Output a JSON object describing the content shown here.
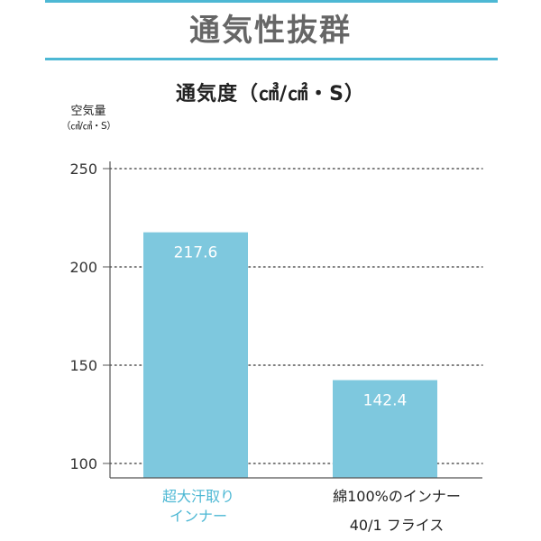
{
  "heading": "通気性抜群",
  "colors": {
    "accent": "#4db8d4",
    "bar": "#7ec8de",
    "axis": "#555555",
    "grid": "#555555"
  },
  "chart_data": {
    "type": "bar",
    "title": "通気度（㎤/㎠・S）",
    "ylabel_line1": "空気量",
    "ylabel_line2": "（㎤/㎠・S）",
    "categories": [
      "超大汗取り\nインナー",
      "綿100%のインナー\n40/1 フライス"
    ],
    "values": [
      217.6,
      142.4
    ],
    "value_labels": [
      "217.6",
      "142.4"
    ],
    "ylim": [
      100,
      250
    ],
    "yticks": [
      100,
      150,
      200,
      250
    ],
    "grid": true,
    "grid_style": "dotted"
  }
}
